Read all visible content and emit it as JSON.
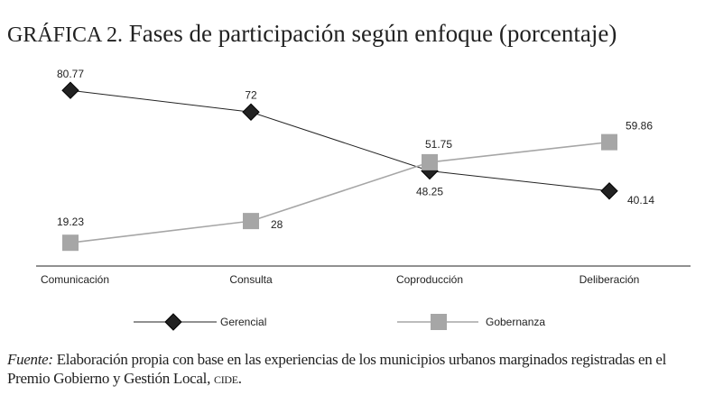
{
  "title": {
    "label": "GRÁFICA 2.",
    "text": "Fases de participación según enfoque (porcentaje)"
  },
  "chart_data": {
    "type": "line",
    "title": "Fases de participación según enfoque (porcentaje)",
    "categories": [
      "Comunicación",
      "Consulta",
      "Coproducción",
      "Deliberación"
    ],
    "series": [
      {
        "name": "Gerencial",
        "values": [
          80.77,
          72,
          48.25,
          40.14
        ],
        "color": "#222222",
        "marker": "diamond"
      },
      {
        "name": "Gobernanza",
        "values": [
          19.23,
          28,
          51.75,
          59.86
        ],
        "color": "#a6a6a6",
        "marker": "square"
      }
    ],
    "value_labels": [
      [
        "80.77",
        "72",
        "48.25",
        "40.14"
      ],
      [
        "19.23",
        "28",
        "51.75",
        "59.86"
      ]
    ],
    "legend": "bottom",
    "grid": false
  },
  "source": {
    "label": "Fuente:",
    "text": "Elaboración propia con base en las experiencias de los municipios urbanos marginados registradas en el Premio Gobierno y Gestión Local,",
    "org": "cide",
    "end": "."
  }
}
